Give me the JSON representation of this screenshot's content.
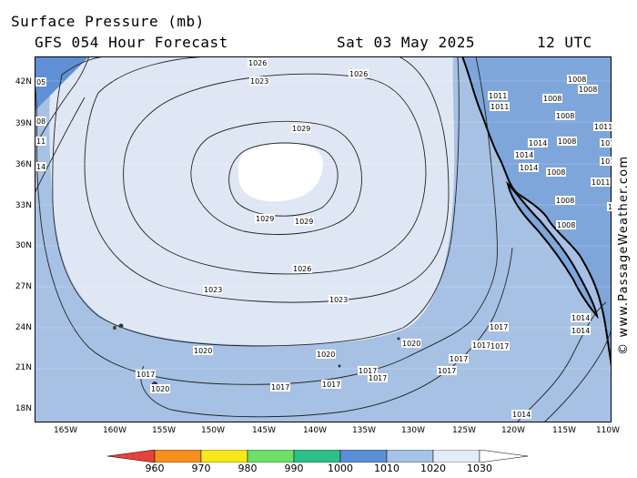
{
  "header": {
    "title": "Surface Pressure (mb)",
    "subtitle": "GFS 054 Hour Forecast",
    "date": "Sat 03 May 2025",
    "time": "12 UTC"
  },
  "credit": "© www.PassageWeather.com",
  "axes": {
    "lat_labels": [
      "42N",
      "39N",
      "36N",
      "33N",
      "30N",
      "27N",
      "24N",
      "21N",
      "18N"
    ],
    "lon_labels": [
      "165W",
      "160W",
      "155W",
      "150W",
      "145W",
      "140W",
      "135W",
      "130W",
      "125W",
      "120W",
      "115W",
      "110W"
    ]
  },
  "colorbar": {
    "labels": [
      "960",
      "970",
      "980",
      "990",
      "1000",
      "1010",
      "1020",
      "1030"
    ],
    "colors": [
      "#e8423c",
      "#f5901d",
      "#f7e81c",
      "#6ee06a",
      "#2fbf8a",
      "#5d8fd6",
      "#a6c2e6",
      "#e4ecf8"
    ]
  },
  "isobar_labels": [
    {
      "text": "1026"
    },
    {
      "text": "1023"
    },
    {
      "text": "1026"
    },
    {
      "text": "1029"
    },
    {
      "text": "1029"
    },
    {
      "text": "1029"
    },
    {
      "text": "1026"
    },
    {
      "text": "1023"
    },
    {
      "text": "1023"
    },
    {
      "text": "1020"
    },
    {
      "text": "1020"
    },
    {
      "text": "1020"
    },
    {
      "text": "1017"
    },
    {
      "text": "1017"
    },
    {
      "text": "1017"
    },
    {
      "text": "1017"
    },
    {
      "text": "1017"
    },
    {
      "text": "1017"
    },
    {
      "text": "1017"
    },
    {
      "text": "1017"
    },
    {
      "text": "1017"
    },
    {
      "text": "1017"
    },
    {
      "text": "1020"
    },
    {
      "text": "1014"
    },
    {
      "text": "1014"
    },
    {
      "text": "1014"
    },
    {
      "text": "1014"
    },
    {
      "text": "1014"
    },
    {
      "text": "1011"
    },
    {
      "text": "1011"
    },
    {
      "text": "1011"
    },
    {
      "text": "1011"
    },
    {
      "text": "1011"
    },
    {
      "text": "1011"
    },
    {
      "text": "1008"
    },
    {
      "text": "1008"
    },
    {
      "text": "1008"
    },
    {
      "text": "1008"
    },
    {
      "text": "1008"
    },
    {
      "text": "1008"
    },
    {
      "text": "1008"
    },
    {
      "text": "1008"
    },
    {
      "text": "1014"
    },
    {
      "text": "1014"
    },
    {
      "text": "05"
    },
    {
      "text": "08"
    },
    {
      "text": "11"
    },
    {
      "text": "14"
    }
  ]
}
